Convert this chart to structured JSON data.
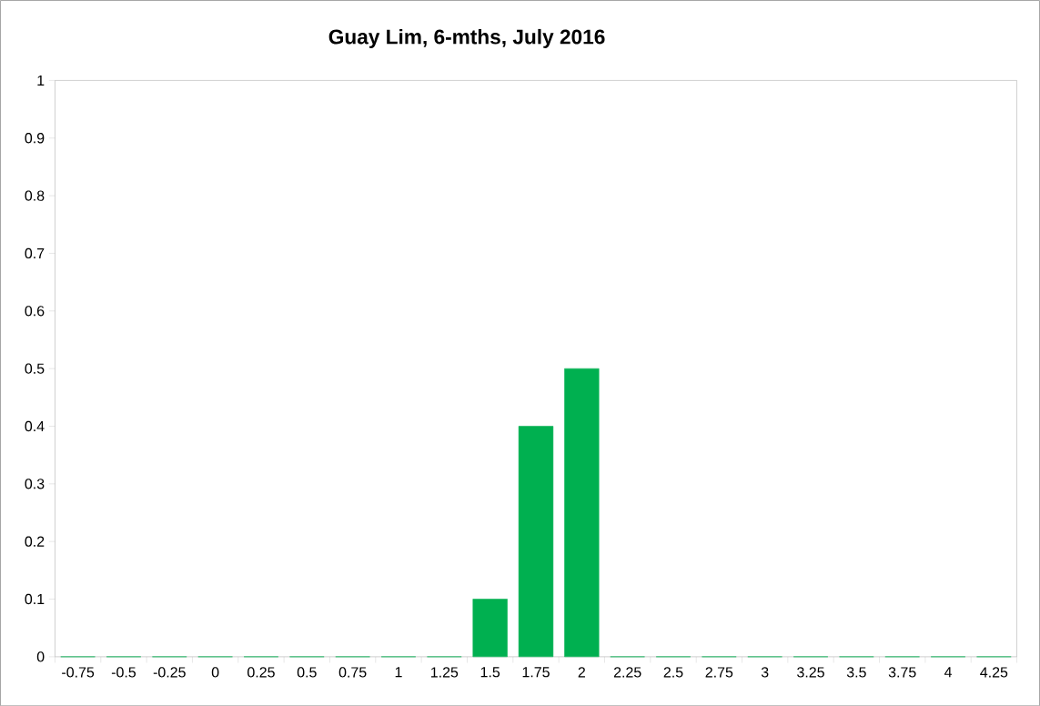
{
  "chart_data": {
    "type": "bar",
    "title": "Guay Lim, 6-mths, July 2016",
    "categories": [
      "-0.75",
      "-0.5",
      "-0.25",
      "0",
      "0.25",
      "0.5",
      "0.75",
      "1",
      "1.25",
      "1.5",
      "1.75",
      "2",
      "2.25",
      "2.5",
      "2.75",
      "3",
      "3.25",
      "3.5",
      "3.75",
      "4",
      "4.25"
    ],
    "values": [
      0,
      0,
      0,
      0,
      0,
      0,
      0,
      0,
      0,
      0.1,
      0.4,
      0.5,
      0,
      0,
      0,
      0,
      0,
      0,
      0,
      0,
      0
    ],
    "color": "#00b050",
    "ylim": [
      0,
      1
    ],
    "yticks": [
      0,
      0.1,
      0.2,
      0.3,
      0.4,
      0.5,
      0.6,
      0.7,
      0.8,
      0.9,
      1
    ]
  }
}
